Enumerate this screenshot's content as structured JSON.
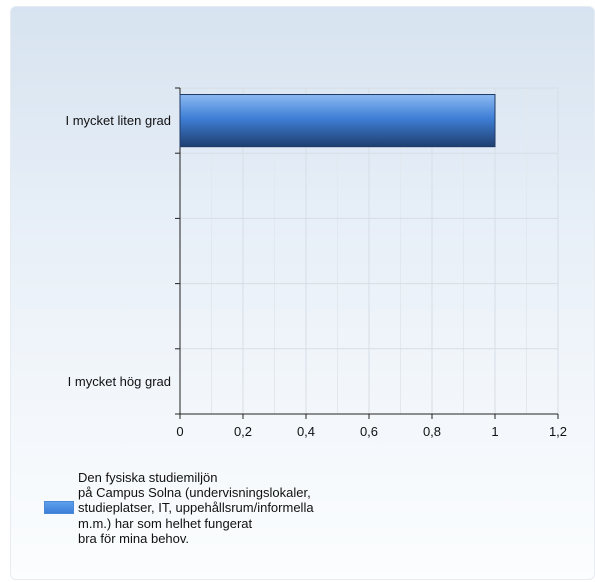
{
  "chart_data": {
    "type": "bar",
    "orientation": "horizontal",
    "categories": [
      "I mycket liten grad",
      "",
      "",
      "",
      "I mycket hög grad"
    ],
    "series": [
      {
        "name": "Den fysiska studiemiljön\npå Campus Solna (undervisningslokaler,\nstudieplatser, IT, uppehållsrum/informella\nm.m.) har som helhet fungerat\nbra för mina behov.",
        "values": [
          1,
          0,
          0,
          0,
          0
        ],
        "color": "#3d7fd9"
      }
    ],
    "xlim": [
      0,
      1.2
    ],
    "xticks": [
      "0",
      "0,2",
      "0,4",
      "0,6",
      "0,8",
      "1",
      "1,2"
    ],
    "grid": true,
    "legend": "bottom-left"
  }
}
